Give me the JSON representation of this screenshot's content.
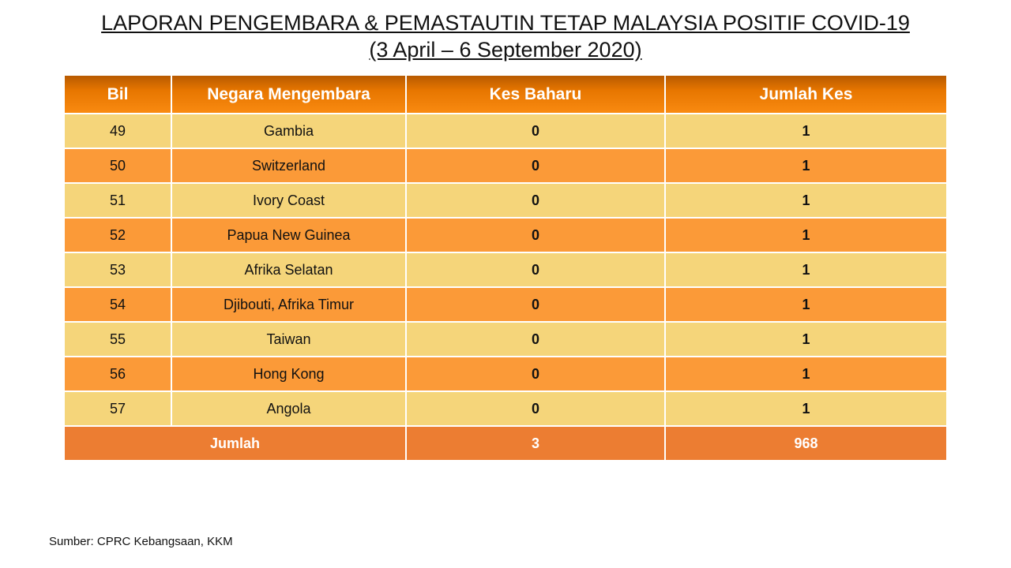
{
  "title": {
    "line1": "LAPORAN PENGEMBARA & PEMASTAUTIN TETAP MALAYSIA POSITIF COVID-19",
    "line2": "(3 April – 6 September  2020)"
  },
  "table": {
    "headers": [
      "Bil",
      "Negara Mengembara",
      "Kes Baharu",
      "Jumlah Kes"
    ],
    "rows": [
      [
        "49",
        "Gambia",
        "0",
        "1"
      ],
      [
        "50",
        "Switzerland",
        "0",
        "1"
      ],
      [
        "51",
        "Ivory Coast",
        "0",
        "1"
      ],
      [
        "52",
        "Papua New Guinea",
        "0",
        "1"
      ],
      [
        "53",
        "Afrika Selatan",
        "0",
        "1"
      ],
      [
        "54",
        "Djibouti, Afrika Timur",
        "0",
        "1"
      ],
      [
        "55",
        "Taiwan",
        "0",
        "1"
      ],
      [
        "56",
        "Hong Kong",
        "0",
        "1"
      ],
      [
        "57",
        "Angola",
        "0",
        "1"
      ]
    ],
    "total": {
      "label": "Jumlah",
      "kes_baharu": "3",
      "jumlah_kes": "968"
    }
  },
  "source": "Sumber: CPRC Kebangsaan, KKM",
  "colors": {
    "header": "#e77600",
    "row_light": "#f5d57a",
    "row_dark": "#fb9a38",
    "total": "#ec7d32"
  }
}
